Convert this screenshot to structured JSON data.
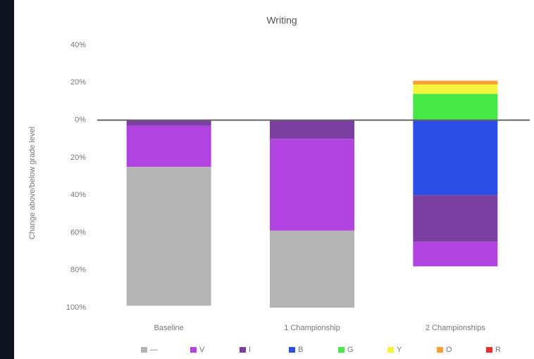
{
  "chart_data": {
    "type": "stacked-bar",
    "title": "Writing",
    "y_label": "Change above/below grade level",
    "categories": [
      "Baseline",
      "1 Championship",
      "2 Championships"
    ],
    "series": [
      {
        "name": "—",
        "color": "#b5b5b5",
        "values": [
          -74,
          -41,
          0
        ]
      },
      {
        "name": "V",
        "color": "#b143e0",
        "values": [
          -22,
          -49,
          -13
        ]
      },
      {
        "name": "I",
        "color": "#7b3fa2",
        "values": [
          -3,
          -10,
          -25
        ]
      },
      {
        "name": "B",
        "color": "#2b4ee6",
        "values": [
          0,
          0,
          -40
        ]
      },
      {
        "name": "G",
        "color": "#45e845",
        "values": [
          0,
          0,
          14
        ]
      },
      {
        "name": "Y",
        "color": "#f4f43c",
        "values": [
          0,
          0,
          5
        ]
      },
      {
        "name": "O",
        "color": "#f4a234",
        "values": [
          0,
          0,
          2
        ]
      },
      {
        "name": "R",
        "color": "#e43030",
        "values": [
          0,
          0,
          0
        ]
      }
    ],
    "ylim": [
      -100,
      40
    ],
    "yticks": [
      {
        "value": 40,
        "label": "40%"
      },
      {
        "value": 20,
        "label": "20%"
      },
      {
        "value": 0,
        "label": "0%"
      },
      {
        "value": -20,
        "label": "20%"
      },
      {
        "value": -40,
        "label": "40%"
      },
      {
        "value": -60,
        "label": "60%"
      },
      {
        "value": -80,
        "label": "80%"
      },
      {
        "value": -100,
        "label": "100%"
      }
    ],
    "grid": false
  }
}
